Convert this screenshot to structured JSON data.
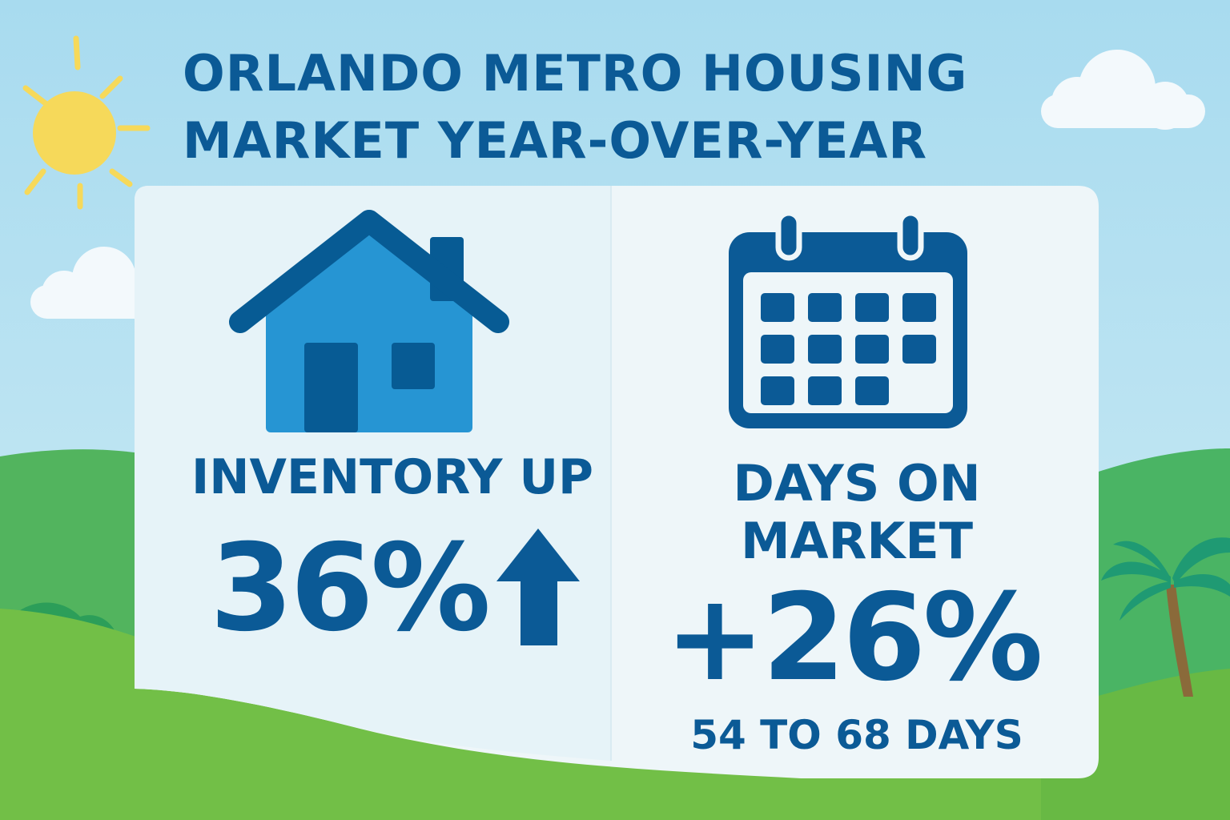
{
  "title": {
    "line1": "ORLANDO METRO HOUSING",
    "line2": "MARKET YEAR-OVER-YEAR"
  },
  "inventory": {
    "label": "INVENTORY UP",
    "value": "36%",
    "icon": "house-icon",
    "trend_icon": "arrow-up-icon"
  },
  "days_on_market": {
    "label_line1": "DAYS ON",
    "label_line2": "MARKET",
    "value": "+26%",
    "range": "54 TO 68 DAYS",
    "icon": "calendar-icon"
  },
  "colors": {
    "text": "#0b5a96",
    "house_body": "#2695d3",
    "house_dark": "#075b94",
    "sky_top": "#a9dcee",
    "sky_bottom": "#dff1f8",
    "hill_light": "#76c14a",
    "hill_dark": "#4ab464",
    "sun": "#f6d95a",
    "card": "#eef6f9"
  }
}
